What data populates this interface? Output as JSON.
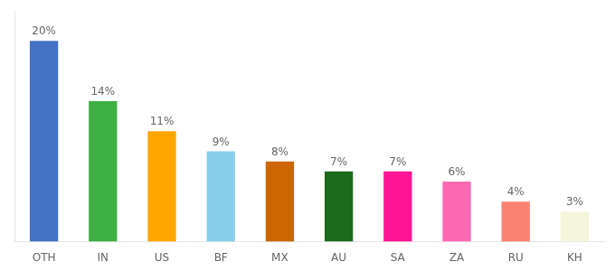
{
  "chart_data": {
    "type": "bar",
    "categories": [
      "OTH",
      "IN",
      "US",
      "BF",
      "MX",
      "AU",
      "SA",
      "ZA",
      "RU",
      "KH"
    ],
    "values": [
      20,
      14,
      11,
      9,
      8,
      7,
      7,
      6,
      4,
      3
    ],
    "value_labels": [
      "20%",
      "14%",
      "11%",
      "9%",
      "8%",
      "7%",
      "7%",
      "6%",
      "4%",
      "3%"
    ],
    "colors": [
      "#4472C4",
      "#3CB043",
      "#FFA500",
      "#87CEEB",
      "#CC6600",
      "#1B6B1B",
      "#FF1493",
      "#FF69B4",
      "#FA8072",
      "#F5F5DC"
    ],
    "ylim": [
      0,
      23
    ],
    "data_labels": true,
    "tick_labels": "x",
    "grid": false
  }
}
